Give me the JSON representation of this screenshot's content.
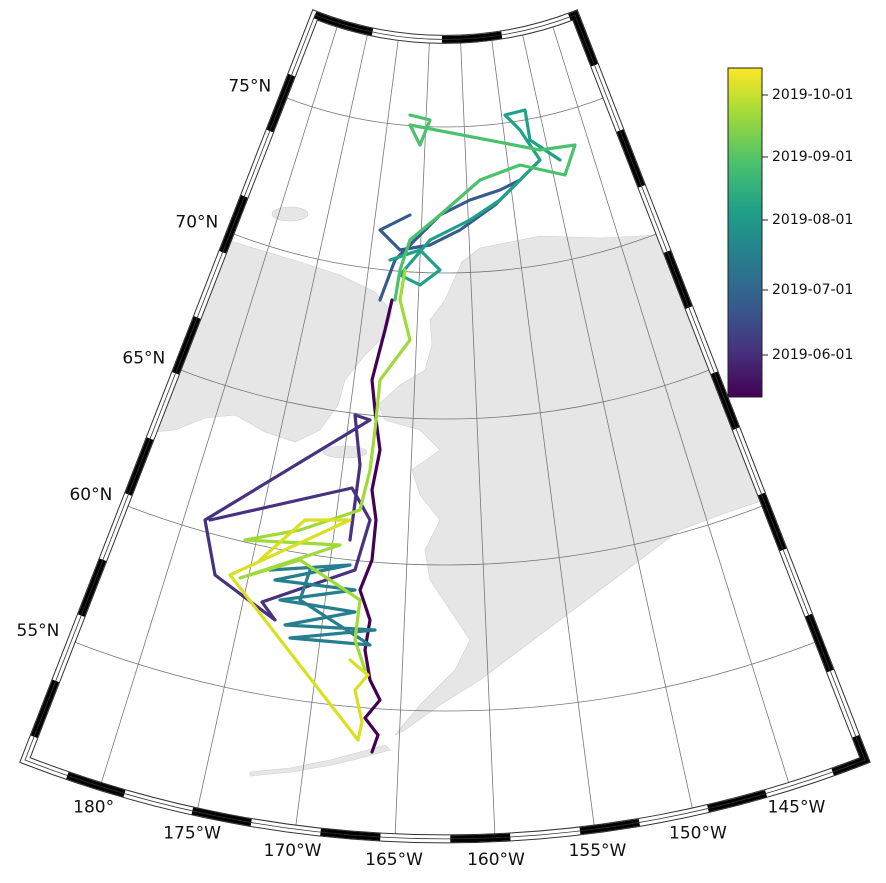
{
  "latitude_labels": [
    "75°N",
    "70°N",
    "65°N",
    "60°N",
    "55°N"
  ],
  "longitude_labels": [
    "180°",
    "175°W",
    "170°W",
    "165°W",
    "160°W",
    "155°W",
    "150°W",
    "145°W"
  ],
  "colorbar": {
    "labels": [
      "2019-10-01",
      "2019-09-01",
      "2019-08-01",
      "2019-07-01",
      "2019-06-01"
    ]
  }
}
